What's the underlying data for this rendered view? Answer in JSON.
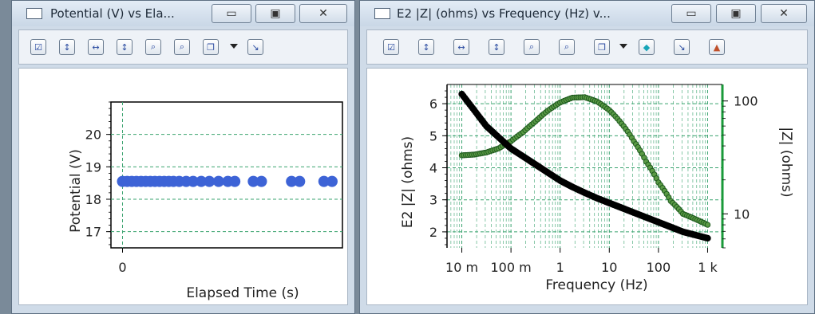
{
  "windows": [
    {
      "title": "Potential (V) vs Ela...",
      "controls": [
        "minimize",
        "maximize",
        "close"
      ],
      "toolbar_icons": [
        "plot-settings-icon",
        "y-axis-scale-icon",
        "x-axis-scale-icon",
        "y2-axis-scale-icon",
        "zoom-in-icon",
        "zoom-out-icon",
        "copy-icon",
        "dropdown-icon",
        "curve-icon"
      ]
    },
    {
      "title": "E2 |Z| (ohms) vs Frequency (Hz) v...",
      "controls": [
        "minimize",
        "maximize",
        "close"
      ],
      "toolbar_icons": [
        "plot-settings-icon",
        "y-axis-scale-icon",
        "x-axis-scale-icon",
        "y2-axis-scale-icon",
        "zoom-in-icon",
        "zoom-out-icon",
        "copy-icon",
        "dropdown-icon",
        "marker-icon",
        "curve-fit-icon",
        "peak-icon"
      ]
    }
  ],
  "chart_data": [
    {
      "type": "scatter",
      "xlabel": "Elapsed Time (s)",
      "ylabel": "Potential (V)",
      "xticks": [
        "0"
      ],
      "yticks": [
        "17",
        "18",
        "19",
        "20"
      ],
      "xlim": [
        -1,
        19
      ],
      "ylim": [
        16.5,
        21.0
      ],
      "grid": true,
      "series": [
        {
          "color": "#3d63d6",
          "x": [
            0.0,
            0.4,
            0.8,
            1.2,
            1.6,
            2.0,
            2.4,
            2.8,
            3.2,
            3.6,
            4.0,
            4.4,
            4.9,
            5.5,
            6.1,
            6.8,
            7.5,
            8.3,
            9.1,
            9.7,
            11.3,
            12.0,
            14.6,
            15.3,
            17.4,
            18.1
          ],
          "y": [
            18.55,
            18.55,
            18.55,
            18.55,
            18.55,
            18.55,
            18.55,
            18.55,
            18.55,
            18.55,
            18.55,
            18.55,
            18.55,
            18.55,
            18.55,
            18.55,
            18.55,
            18.55,
            18.55,
            18.55,
            18.55,
            18.55,
            18.55,
            18.55,
            18.55,
            18.55
          ]
        }
      ]
    },
    {
      "type": "scatter",
      "xlabel": "Frequency (Hz)",
      "ylabel": "E2 |Z| (ohms)",
      "y2label": "|Z| (ohms)",
      "x_scale": "log",
      "y2_scale": "log",
      "xticks": [
        "10 m",
        "100 m",
        "1",
        "10",
        "100",
        "1 k"
      ],
      "yticks": [
        "2",
        "3",
        "4",
        "5",
        "6"
      ],
      "y2ticks": [
        "10",
        "100"
      ],
      "xlim": [
        0.005,
        2000
      ],
      "ylim": [
        1.5,
        6.6
      ],
      "y2lim": [
        5,
        140
      ],
      "grid": true,
      "series": [
        {
          "color": "#000000",
          "axis": "left",
          "x": [
            0.01,
            0.0178,
            0.0316,
            0.0562,
            0.1,
            0.178,
            0.316,
            0.562,
            1,
            1.78,
            3.16,
            5.62,
            10,
            17.8,
            31.6,
            56.2,
            100,
            178,
            316,
            562,
            1000
          ],
          "y": [
            6.3,
            5.8,
            5.3,
            4.95,
            4.6,
            4.35,
            4.1,
            3.85,
            3.6,
            3.4,
            3.22,
            3.05,
            2.9,
            2.75,
            2.6,
            2.45,
            2.3,
            2.15,
            2.0,
            1.9,
            1.8
          ]
        },
        {
          "color": "#2f7a2f",
          "axis": "right",
          "x": [
            0.01,
            0.0178,
            0.0316,
            0.0562,
            0.1,
            0.178,
            0.316,
            0.562,
            1,
            1.78,
            3.16,
            5.62,
            10,
            17.8,
            31.6,
            56.2,
            100,
            178,
            316,
            562,
            1000
          ],
          "y": [
            33,
            33.5,
            35,
            38,
            44,
            53,
            66,
            82,
            97,
            107,
            108,
            99,
            83,
            63,
            44,
            29,
            19,
            13,
            10,
            9,
            8
          ]
        }
      ]
    }
  ]
}
